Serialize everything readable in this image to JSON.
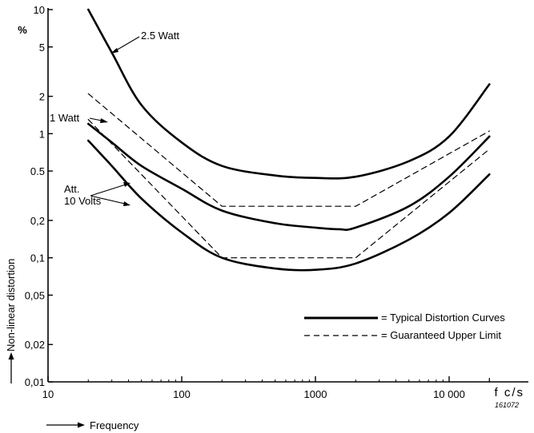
{
  "chart_data": {
    "type": "line",
    "title": "",
    "xlabel": "Frequency",
    "xunit": "f c/s",
    "ylabel": "Non-linear distortion",
    "yunit": "%",
    "x_scale": "log",
    "y_scale": "log",
    "xlim": [
      10,
      20000
    ],
    "ylim": [
      0.01,
      10
    ],
    "x_ticks": [
      10,
      100,
      1000,
      10000
    ],
    "x_tick_labels": [
      "10",
      "100",
      "1000",
      "10 000"
    ],
    "y_ticks": [
      0.01,
      0.02,
      0.05,
      0.1,
      0.2,
      0.5,
      1,
      2,
      5,
      10
    ],
    "y_tick_labels": [
      "0,01",
      "0,02",
      "0,05",
      "0,1",
      "0,2",
      "0.5",
      "1",
      "2",
      "5",
      "10"
    ],
    "grid": false,
    "legend_position": "bottom-right",
    "legend": [
      {
        "style": "solid",
        "label": "= Typical Distortion Curves"
      },
      {
        "style": "dashed",
        "label": "= Guaranteed Upper Limit"
      }
    ],
    "annotations": [
      {
        "text": "2.5 Watt"
      },
      {
        "text": "1 Watt"
      },
      {
        "text": "Att."
      },
      {
        "text": "10 Volts"
      }
    ],
    "figure_number": "161072",
    "series": [
      {
        "style": "solid",
        "points": [
          [
            20,
            10
          ],
          [
            30,
            4.5
          ],
          [
            50,
            1.7
          ],
          [
            100,
            0.85
          ],
          [
            200,
            0.55
          ],
          [
            500,
            0.46
          ],
          [
            1000,
            0.44
          ],
          [
            2000,
            0.45
          ],
          [
            5000,
            0.6
          ],
          [
            10000,
            0.95
          ],
          [
            20000,
            2.5
          ]
        ]
      },
      {
        "style": "solid",
        "points": [
          [
            20,
            1.2
          ],
          [
            30,
            0.85
          ],
          [
            50,
            0.55
          ],
          [
            100,
            0.36
          ],
          [
            200,
            0.24
          ],
          [
            500,
            0.19
          ],
          [
            1000,
            0.175
          ],
          [
            1500,
            0.17
          ],
          [
            2000,
            0.175
          ],
          [
            5000,
            0.26
          ],
          [
            10000,
            0.45
          ],
          [
            20000,
            0.95
          ]
        ]
      },
      {
        "style": "solid",
        "points": [
          [
            20,
            0.88
          ],
          [
            30,
            0.55
          ],
          [
            50,
            0.3
          ],
          [
            100,
            0.16
          ],
          [
            200,
            0.1
          ],
          [
            500,
            0.082
          ],
          [
            1000,
            0.08
          ],
          [
            2000,
            0.09
          ],
          [
            5000,
            0.14
          ],
          [
            10000,
            0.23
          ],
          [
            20000,
            0.47
          ]
        ]
      },
      {
        "style": "dashed",
        "points": [
          [
            20,
            2.1
          ],
          [
            200,
            0.26
          ],
          [
            2000,
            0.26
          ],
          [
            20000,
            1.05
          ]
        ]
      },
      {
        "style": "dashed",
        "points": [
          [
            20,
            1.3
          ],
          [
            200,
            0.1
          ],
          [
            2000,
            0.1
          ],
          [
            20000,
            0.75
          ]
        ]
      }
    ]
  }
}
